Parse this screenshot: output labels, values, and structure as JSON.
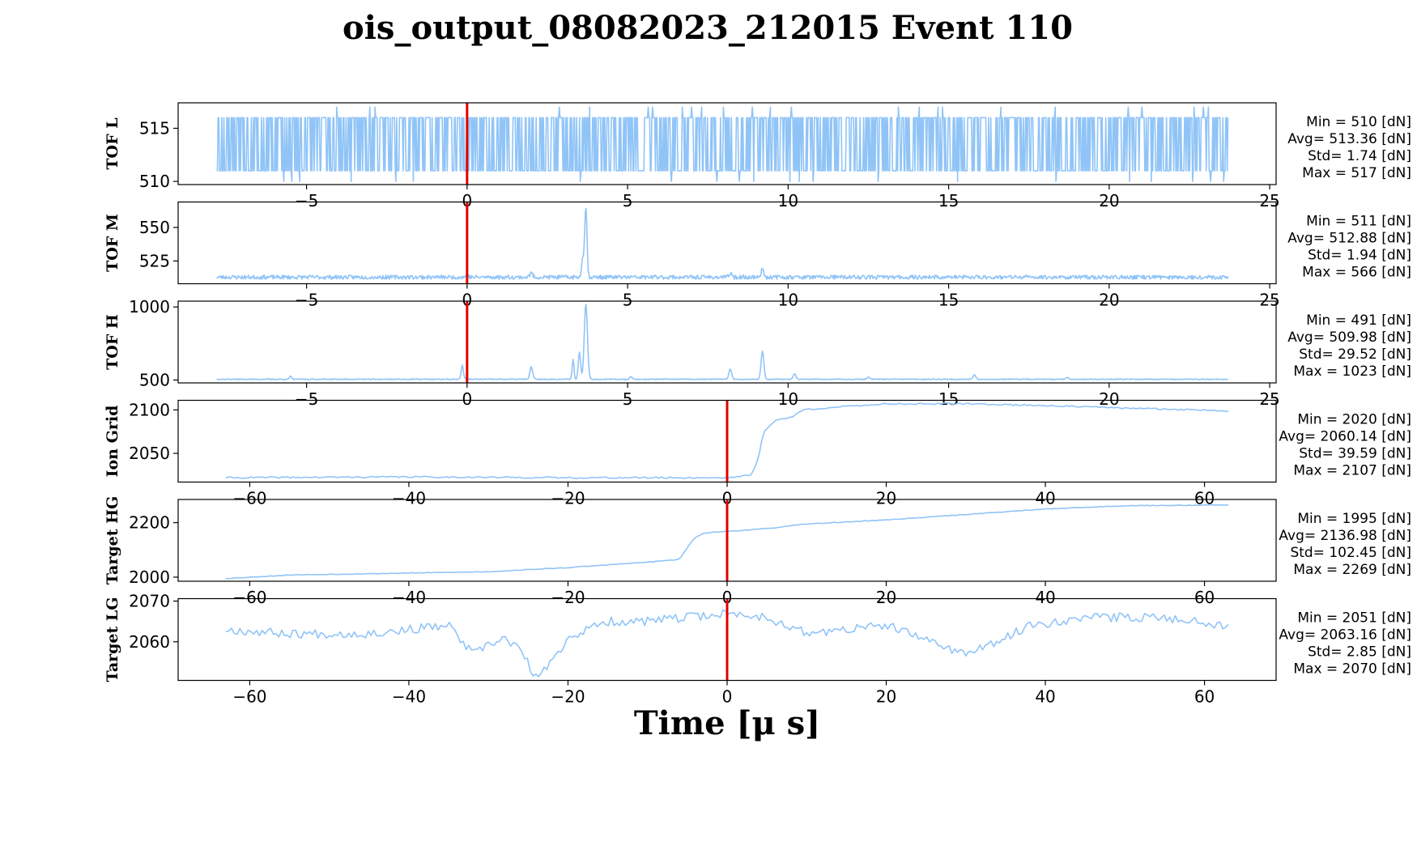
{
  "chart_data": {
    "type": "line",
    "title": "ois_output_08082023_212015 Event 110",
    "xlabel": "Time [μ s]",
    "line_color": "#90c4f7",
    "marker_color": "#e00000",
    "panels": [
      {
        "id": "tof-l",
        "ylabel": "TOF L",
        "xlim": [
          -9,
          25.2
        ],
        "ylim": [
          509.7,
          517.4
        ],
        "xticks": [
          -5,
          0,
          5,
          10,
          15,
          20,
          25
        ],
        "xtick_labels": [
          "−5",
          "0",
          "5",
          "10",
          "15",
          "20",
          "25"
        ],
        "yticks": [
          510,
          515
        ],
        "ytick_labels": [
          "510",
          "515"
        ],
        "marker_x": 0,
        "series": {
          "kind": "noise",
          "x_start": -7.8,
          "x_end": 23.7,
          "n": 1400,
          "low": 511,
          "high": 516,
          "min": 510,
          "max": 517,
          "base": 513.36,
          "seed": 11
        },
        "stats": [
          "Min = 510 [dN]",
          "Avg= 513.36 [dN]",
          "Std= 1.74 [dN]",
          "Max = 517 [dN]"
        ]
      },
      {
        "id": "tof-m",
        "ylabel": "TOF M",
        "xlim": [
          -9,
          25.2
        ],
        "ylim": [
          508,
          569
        ],
        "xticks": [
          -5,
          0,
          5,
          10,
          15,
          20,
          25
        ],
        "xtick_labels": [
          "−5",
          "0",
          "5",
          "10",
          "15",
          "20",
          "25"
        ],
        "yticks": [
          525,
          550
        ],
        "ytick_labels": [
          "525",
          "550"
        ],
        "marker_x": 0,
        "series": {
          "kind": "spiky",
          "x_start": -7.8,
          "x_end": 23.7,
          "n": 1400,
          "base": 512.9,
          "noise": 1.5,
          "min": 511,
          "seed": 23,
          "peaks": [
            [
              3.7,
              566,
              0.05
            ],
            [
              3.6,
              528,
              0.05
            ],
            [
              9.2,
              519,
              0.06
            ],
            [
              2.0,
              516,
              0.06
            ],
            [
              8.2,
              516,
              0.06
            ],
            [
              0,
              515,
              0.05
            ]
          ]
        },
        "stats": [
          "Min = 511 [dN]",
          "Avg= 512.88 [dN]",
          "Std= 1.94 [dN]",
          "Max = 566 [dN]"
        ]
      },
      {
        "id": "tof-h",
        "ylabel": "TOF H",
        "xlim": [
          -9,
          25.2
        ],
        "ylim": [
          480,
          1040
        ],
        "xticks": [
          -5,
          0,
          5,
          10,
          15,
          20,
          25
        ],
        "xtick_labels": [
          "−5",
          "0",
          "5",
          "10",
          "15",
          "20",
          "25"
        ],
        "yticks": [
          500,
          1000
        ],
        "ytick_labels": [
          "500",
          "1000"
        ],
        "marker_x": 0,
        "series": {
          "kind": "spiky",
          "x_start": -7.8,
          "x_end": 23.7,
          "n": 1400,
          "base": 505,
          "noise": 3,
          "min": 491,
          "seed": 37,
          "peaks": [
            [
              3.7,
              1023,
              0.07
            ],
            [
              3.5,
              690,
              0.05
            ],
            [
              3.3,
              640,
              0.04
            ],
            [
              9.2,
              700,
              0.06
            ],
            [
              -0.15,
              600,
              0.05
            ],
            [
              2.0,
              590,
              0.06
            ],
            [
              8.2,
              575,
              0.06
            ],
            [
              -5.5,
              525,
              0.05
            ],
            [
              10.2,
              540,
              0.06
            ],
            [
              15.8,
              535,
              0.06
            ],
            [
              5.1,
              525,
              0.05
            ],
            [
              12.5,
              518,
              0.06
            ],
            [
              18.7,
              518,
              0.06
            ]
          ]
        },
        "stats": [
          "Min = 491 [dN]",
          "Avg= 509.98 [dN]",
          "Std= 29.52 [dN]",
          "Max = 1023 [dN]"
        ]
      },
      {
        "id": "ion-grid",
        "ylabel": "Ion Grid",
        "xlim": [
          -69,
          69
        ],
        "ylim": [
          2017,
          2111
        ],
        "xticks": [
          -60,
          -40,
          -20,
          0,
          20,
          40,
          60
        ],
        "xtick_labels": [
          "−60",
          "−40",
          "−20",
          "0",
          "20",
          "40",
          "60"
        ],
        "yticks": [
          2050,
          2100
        ],
        "ytick_labels": [
          "2050",
          "2100"
        ],
        "marker_x": 0,
        "series": {
          "kind": "points",
          "noise": 0.9,
          "seed": 41,
          "x_start": -63,
          "x_end": 63,
          "n": 360,
          "knots": [
            [
              -63,
              2022
            ],
            [
              -40,
              2023
            ],
            [
              -20,
              2022
            ],
            [
              0,
              2022
            ],
            [
              3,
              2025
            ],
            [
              3.8,
              2040
            ],
            [
              4.6,
              2075
            ],
            [
              6,
              2088
            ],
            [
              8,
              2091
            ],
            [
              9.5,
              2100
            ],
            [
              12,
              2102
            ],
            [
              20,
              2107
            ],
            [
              30,
              2107
            ],
            [
              40,
              2105
            ],
            [
              50,
              2102
            ],
            [
              63,
              2099
            ]
          ]
        },
        "stats": [
          "Min = 2020 [dN]",
          "Avg= 2060.14 [dN]",
          "Std= 39.59 [dN]",
          "Max = 2107 [dN]"
        ]
      },
      {
        "id": "target-hg",
        "ylabel": "Target HG",
        "xlim": [
          -69,
          69
        ],
        "ylim": [
          1985,
          2285
        ],
        "xticks": [
          -60,
          -40,
          -20,
          0,
          20,
          40,
          60
        ],
        "xtick_labels": [
          "−60",
          "−40",
          "−20",
          "0",
          "20",
          "40",
          "60"
        ],
        "yticks": [
          2000,
          2200
        ],
        "ytick_labels": [
          "2000",
          "2200"
        ],
        "marker_x": 0,
        "series": {
          "kind": "points",
          "noise": 1.2,
          "seed": 53,
          "x_start": -63,
          "x_end": 63,
          "n": 360,
          "knots": [
            [
              -63,
              1995
            ],
            [
              -55,
              2008
            ],
            [
              -40,
              2015
            ],
            [
              -30,
              2020
            ],
            [
              -20,
              2035
            ],
            [
              -10,
              2055
            ],
            [
              -6,
              2065
            ],
            [
              -5.2,
              2100
            ],
            [
              -4.2,
              2140
            ],
            [
              -3,
              2162
            ],
            [
              0,
              2168
            ],
            [
              5,
              2178
            ],
            [
              10,
              2195
            ],
            [
              20,
              2210
            ],
            [
              30,
              2230
            ],
            [
              40,
              2250
            ],
            [
              50,
              2262
            ],
            [
              63,
              2265
            ]
          ]
        },
        "stats": [
          "Min = 1995 [dN]",
          "Avg= 2136.98 [dN]",
          "Std= 102.45 [dN]",
          "Max = 2269 [dN]"
        ]
      },
      {
        "id": "target-lg",
        "ylabel": "Target LG",
        "xlim": [
          -69,
          69
        ],
        "ylim": [
          2050.5,
          2070.6
        ],
        "xticks": [
          -60,
          -40,
          -20,
          0,
          20,
          40,
          60
        ],
        "xtick_labels": [
          "−60",
          "−40",
          "−20",
          "0",
          "20",
          "40",
          "60"
        ],
        "yticks": [
          2060,
          2070
        ],
        "ytick_labels": [
          "2060",
          "2070"
        ],
        "marker_x": 0,
        "series": {
          "kind": "points",
          "noise": 1.1,
          "seed": 67,
          "x_start": -63,
          "x_end": 63,
          "n": 360,
          "knots": [
            [
              -63,
              2063
            ],
            [
              -55,
              2062
            ],
            [
              -45,
              2062
            ],
            [
              -35,
              2064
            ],
            [
              -32,
              2057
            ],
            [
              -28,
              2061
            ],
            [
              -26,
              2058
            ],
            [
              -24,
              2051
            ],
            [
              -22,
              2055
            ],
            [
              -20,
              2061
            ],
            [
              -15,
              2065
            ],
            [
              -10,
              2065
            ],
            [
              -5,
              2066
            ],
            [
              0,
              2067
            ],
            [
              5,
              2066
            ],
            [
              10,
              2062
            ],
            [
              20,
              2064
            ],
            [
              30,
              2057
            ],
            [
              33,
              2059
            ],
            [
              38,
              2064
            ],
            [
              45,
              2066
            ],
            [
              55,
              2066
            ],
            [
              63,
              2064
            ]
          ]
        },
        "stats": [
          "Min = 2051 [dN]",
          "Avg= 2063.16 [dN]",
          "Std= 2.85 [dN]",
          "Max = 2070 [dN]"
        ]
      }
    ]
  }
}
